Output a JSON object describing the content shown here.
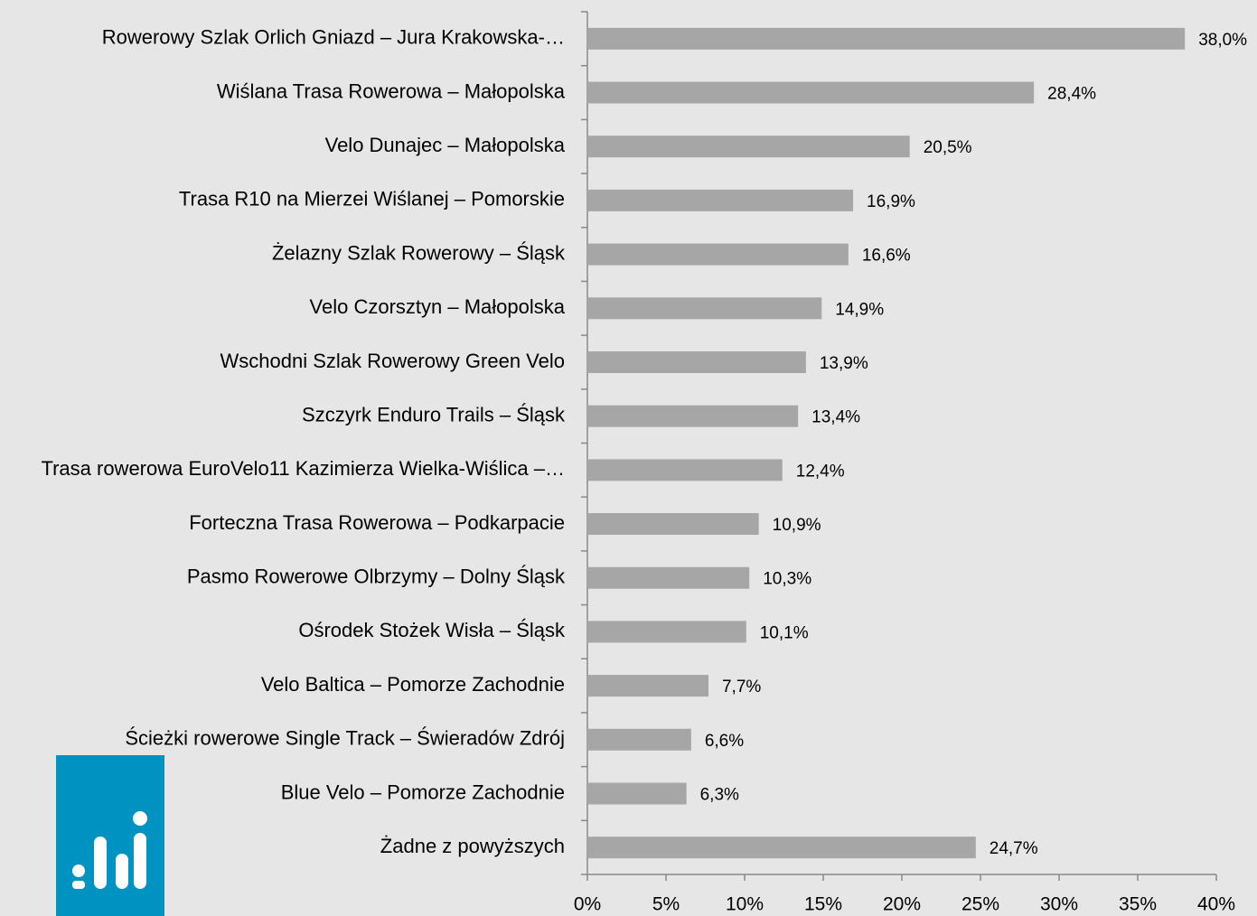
{
  "chart_data": {
    "type": "barh",
    "categories": [
      "Rowerowy Szlak Orlich Gniazd – Jura Krakowska-…",
      "Wiślana Trasa Rowerowa – Małopolska",
      "Velo Dunajec – Małopolska",
      "Trasa R10 na Mierzei Wiślanej – Pomorskie",
      "Żelazny Szlak Rowerowy – Śląsk",
      "Velo Czorsztyn – Małopolska",
      "Wschodni Szlak Rowerowy Green Velo",
      "Szczyrk Enduro Trails – Śląsk",
      "Trasa rowerowa EuroVelo11 Kazimierza Wielka-Wiślica –…",
      "Forteczna Trasa Rowerowa – Podkarpacie",
      "Pasmo Rowerowe Olbrzymy – Dolny Śląsk",
      "Ośrodek Stożek Wisła – Śląsk",
      "Velo Baltica – Pomorze Zachodnie",
      "Ścieżki rowerowe Single Track – Świeradów Zdrój",
      "Blue Velo – Pomorze Zachodnie",
      "Żadne z powyższych"
    ],
    "values": [
      38.0,
      28.4,
      20.5,
      16.9,
      16.6,
      14.9,
      13.9,
      13.4,
      12.4,
      10.9,
      10.3,
      10.1,
      7.7,
      6.6,
      6.3,
      24.7
    ],
    "value_labels": [
      "38,0%",
      "28,4%",
      "20,5%",
      "16,9%",
      "16,6%",
      "14,9%",
      "13,9%",
      "13,4%",
      "12,4%",
      "10,9%",
      "10,3%",
      "10,1%",
      "7,7%",
      "6,6%",
      "6,3%",
      "24,7%"
    ],
    "color": "#a6a6a6",
    "xlim": [
      0,
      40
    ],
    "xticks": [
      {
        "value": 0,
        "label": "0%"
      },
      {
        "value": 5,
        "label": "5%"
      },
      {
        "value": 10,
        "label": "10%"
      },
      {
        "value": 15,
        "label": "15%"
      },
      {
        "value": 20,
        "label": "20%"
      },
      {
        "value": 25,
        "label": "25%"
      },
      {
        "value": 30,
        "label": "30%"
      },
      {
        "value": 35,
        "label": "35%"
      },
      {
        "value": 40,
        "label": "40%"
      }
    ],
    "grid": false
  }
}
